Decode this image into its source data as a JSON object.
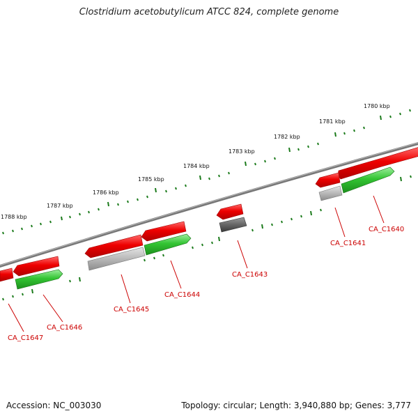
{
  "title": "Clostridium acetobutylicum ATCC 824, complete genome",
  "footer": {
    "accession": "Accession: NC_003030",
    "summary": "Topology: circular; Length: 3,940,880 bp; Genes: 3,777"
  },
  "colors": {
    "forward_gene": "#e00000",
    "reverse_gene": "#2fbf2f",
    "other_gene": "#9a9a9a",
    "dark_gene": "#555555",
    "backbone": "#777777",
    "ticks": "#1a7a1a",
    "label": "#cc0000"
  },
  "scale_labels": [
    "1780 kbp",
    "1781 kbp",
    "1782 kbp",
    "1783 kbp",
    "1784 kbp",
    "1785 kbp",
    "1786 kbp",
    "1787 kbp",
    "1788 kbp"
  ],
  "gene_labels": [
    "CA_C1640",
    "CA_C1641",
    "CA_C1643",
    "CA_C1644",
    "CA_C1645",
    "CA_C1646",
    "CA_C1647"
  ]
}
